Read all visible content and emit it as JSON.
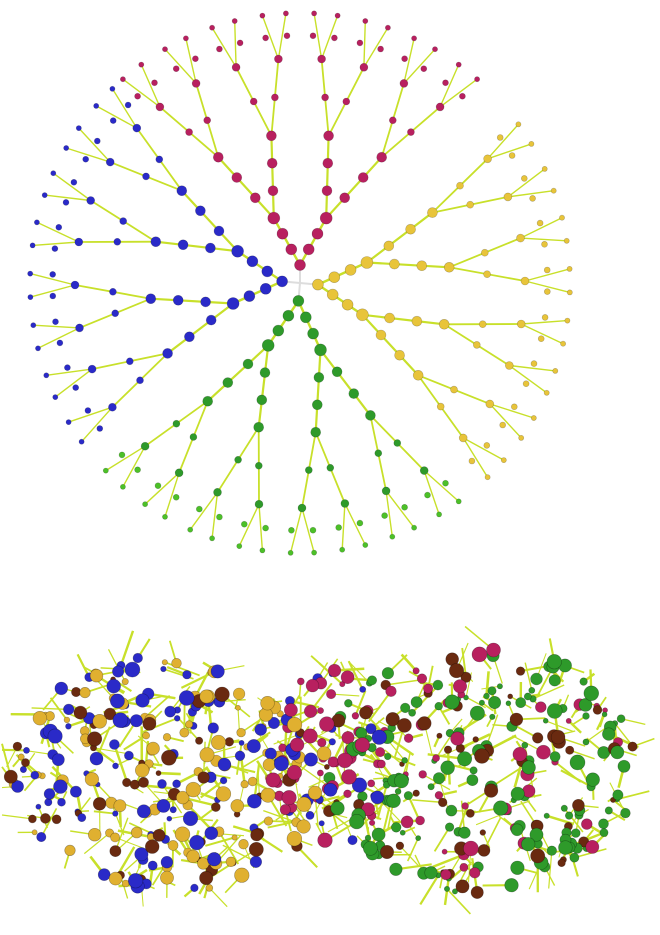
{
  "figure": {
    "panels": [
      {
        "id": "top",
        "kind": "extended-dendrimer-model",
        "branches": [
          {
            "name": "magenta",
            "node_color": "#b8205f"
          },
          {
            "name": "yellow",
            "node_color": "#e8c43a"
          },
          {
            "name": "green",
            "node_color": "#2e9a2a"
          },
          {
            "name": "blue",
            "node_color": "#2a2ac8"
          }
        ],
        "bond_color": "#c8e02a",
        "tip_color_green": "#4cc028"
      },
      {
        "id": "bottom",
        "kind": "collapsed-dendrimer-model",
        "node_colors": [
          "#2a2ac8",
          "#e0b030",
          "#b8205f",
          "#2e9a2a",
          "#6a2a10"
        ],
        "bond_color": "#c8e02a"
      }
    ]
  }
}
